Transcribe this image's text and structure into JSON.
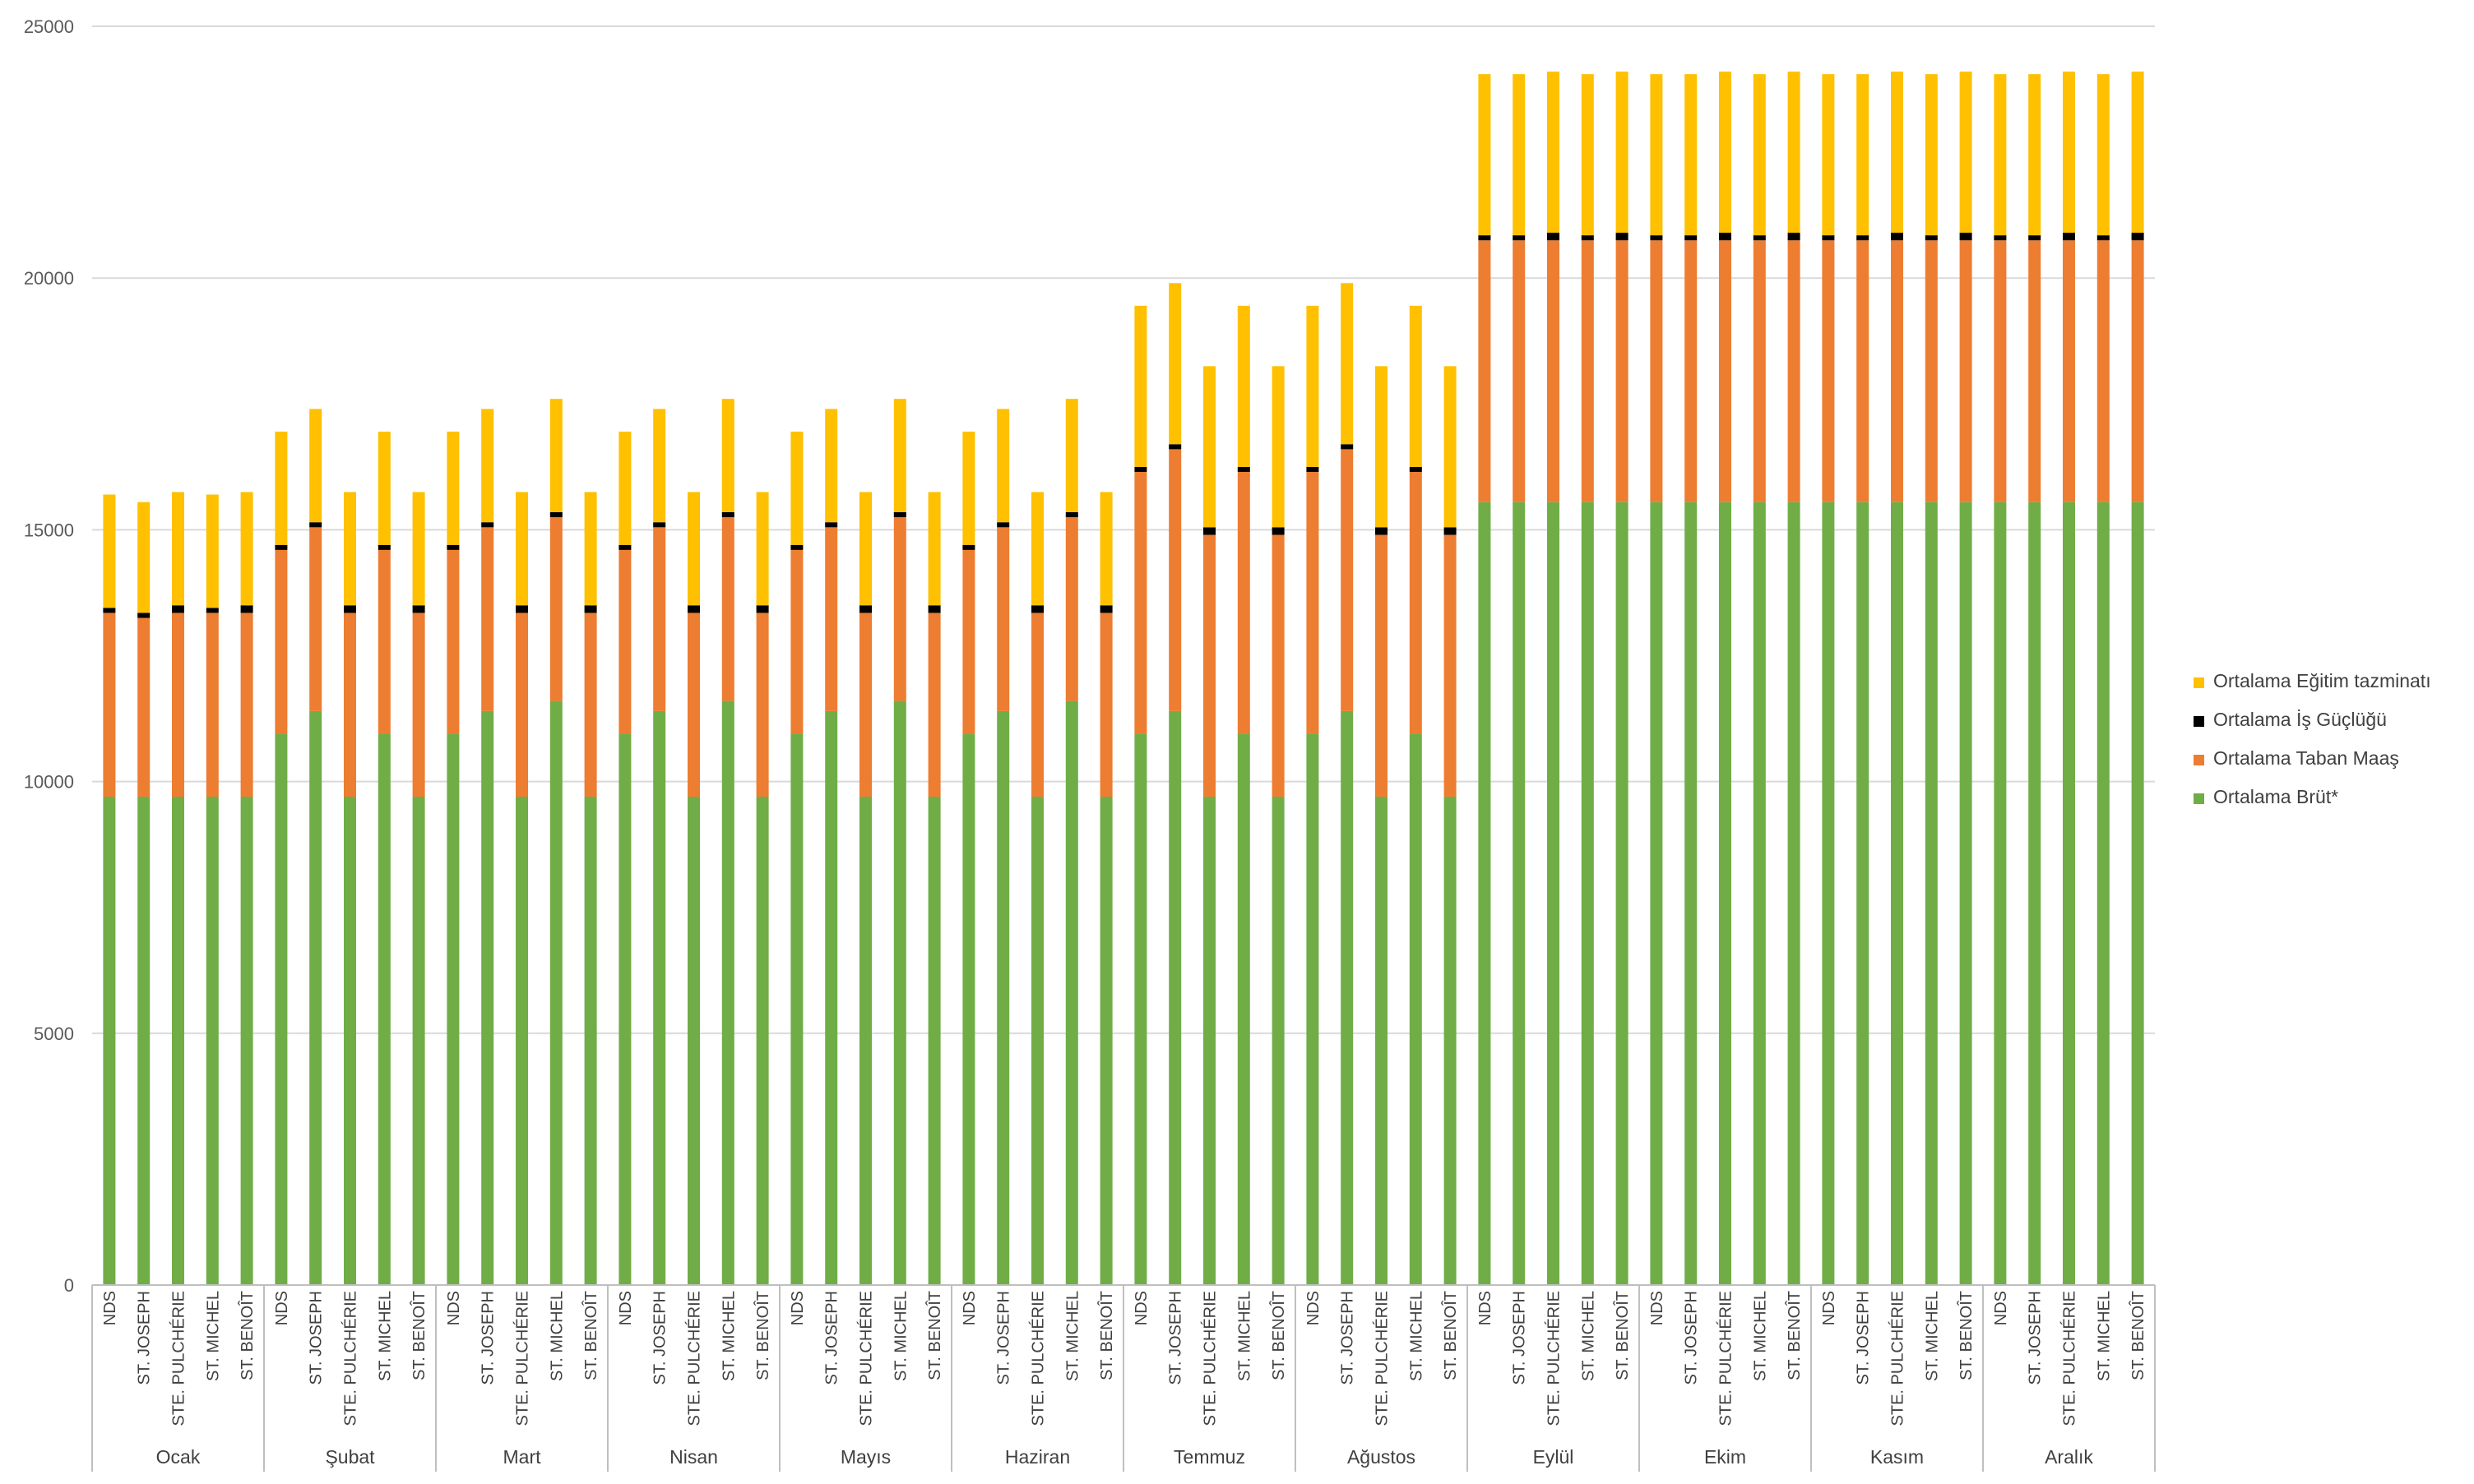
{
  "chart_data": {
    "type": "bar",
    "stacked": true,
    "title": "",
    "xlabel": "",
    "ylabel": "",
    "ylim": [
      0,
      25000
    ],
    "yticks": [
      0,
      5000,
      10000,
      15000,
      20000,
      25000
    ],
    "grid": true,
    "legend_position": "right",
    "months": [
      "Ocak",
      "Şubat",
      "Mart",
      "Nisan",
      "Mayıs",
      "Haziran",
      "Temmuz",
      "Ağustos",
      "Eylül",
      "Ekim",
      "Kasım",
      "Aralık"
    ],
    "schools": [
      "NDS",
      "ST. JOSEPH",
      "STE. PULCHÉRIE",
      "ST. MICHEL",
      "ST. BENOÎT"
    ],
    "legend": [
      "Ortalama Eğitim tazminatı",
      "Ortalama İş Güçlüğü",
      "Ortalama Taban Maaş",
      "Ortalama Brüt*"
    ],
    "series": [
      {
        "name": "Ortalama Brüt*",
        "color": "#70ad47",
        "values": [
          [
            9700,
            9700,
            9700,
            9700,
            9700
          ],
          [
            10950,
            11400,
            9700,
            10950,
            9700
          ],
          [
            10950,
            11400,
            9700,
            11600,
            9700
          ],
          [
            10950,
            11400,
            9700,
            11600,
            9700
          ],
          [
            10950,
            11400,
            9700,
            11600,
            9700
          ],
          [
            10950,
            11400,
            9700,
            11600,
            9700
          ],
          [
            10950,
            11400,
            9700,
            10950,
            9700
          ],
          [
            10950,
            11400,
            9700,
            10950,
            9700
          ],
          [
            15550,
            15550,
            15550,
            15550,
            15550
          ],
          [
            15550,
            15550,
            15550,
            15550,
            15550
          ],
          [
            15550,
            15550,
            15550,
            15550,
            15550
          ],
          [
            15550,
            15550,
            15550,
            15550,
            15550
          ]
        ]
      },
      {
        "name": "Ortalama Taban Maaş",
        "color": "#ed7d31",
        "values": [
          [
            3650,
            3550,
            3650,
            3650,
            3650
          ],
          [
            3650,
            3650,
            3650,
            3650,
            3650
          ],
          [
            3650,
            3650,
            3650,
            3650,
            3650
          ],
          [
            3650,
            3650,
            3650,
            3650,
            3650
          ],
          [
            3650,
            3650,
            3650,
            3650,
            3650
          ],
          [
            3650,
            3650,
            3650,
            3650,
            3650
          ],
          [
            5200,
            5200,
            5200,
            5200,
            5200
          ],
          [
            5200,
            5200,
            5200,
            5200,
            5200
          ],
          [
            5200,
            5200,
            5200,
            5200,
            5200
          ],
          [
            5200,
            5200,
            5200,
            5200,
            5200
          ],
          [
            5200,
            5200,
            5200,
            5200,
            5200
          ],
          [
            5200,
            5200,
            5200,
            5200,
            5200
          ]
        ]
      },
      {
        "name": "Ortalama İş Güçlüğü",
        "color": "#000000",
        "values": [
          [
            100,
            100,
            150,
            100,
            150
          ],
          [
            100,
            100,
            150,
            100,
            150
          ],
          [
            100,
            100,
            150,
            100,
            150
          ],
          [
            100,
            100,
            150,
            100,
            150
          ],
          [
            100,
            100,
            150,
            100,
            150
          ],
          [
            100,
            100,
            150,
            100,
            150
          ],
          [
            100,
            100,
            150,
            100,
            150
          ],
          [
            100,
            100,
            150,
            100,
            150
          ],
          [
            100,
            100,
            150,
            100,
            150
          ],
          [
            100,
            100,
            150,
            100,
            150
          ],
          [
            100,
            100,
            150,
            100,
            150
          ],
          [
            100,
            100,
            150,
            100,
            150
          ]
        ]
      },
      {
        "name": "Ortalama Eğitim tazminatı",
        "color": "#ffc000",
        "values": [
          [
            2250,
            2200,
            2250,
            2250,
            2250
          ],
          [
            2250,
            2250,
            2250,
            2250,
            2250
          ],
          [
            2250,
            2250,
            2250,
            2250,
            2250
          ],
          [
            2250,
            2250,
            2250,
            2250,
            2250
          ],
          [
            2250,
            2250,
            2250,
            2250,
            2250
          ],
          [
            2250,
            2250,
            2250,
            2250,
            2250
          ],
          [
            3200,
            3200,
            3200,
            3200,
            3200
          ],
          [
            3200,
            3200,
            3200,
            3200,
            3200
          ],
          [
            3200,
            3200,
            3200,
            3200,
            3200
          ],
          [
            3200,
            3200,
            3200,
            3200,
            3200
          ],
          [
            3200,
            3200,
            3200,
            3200,
            3200
          ],
          [
            3200,
            3200,
            3200,
            3200,
            3200
          ]
        ]
      }
    ]
  },
  "colors": {
    "gridline": "#d9d9d9",
    "axis": "#bfbfbf",
    "text": "#595959"
  }
}
